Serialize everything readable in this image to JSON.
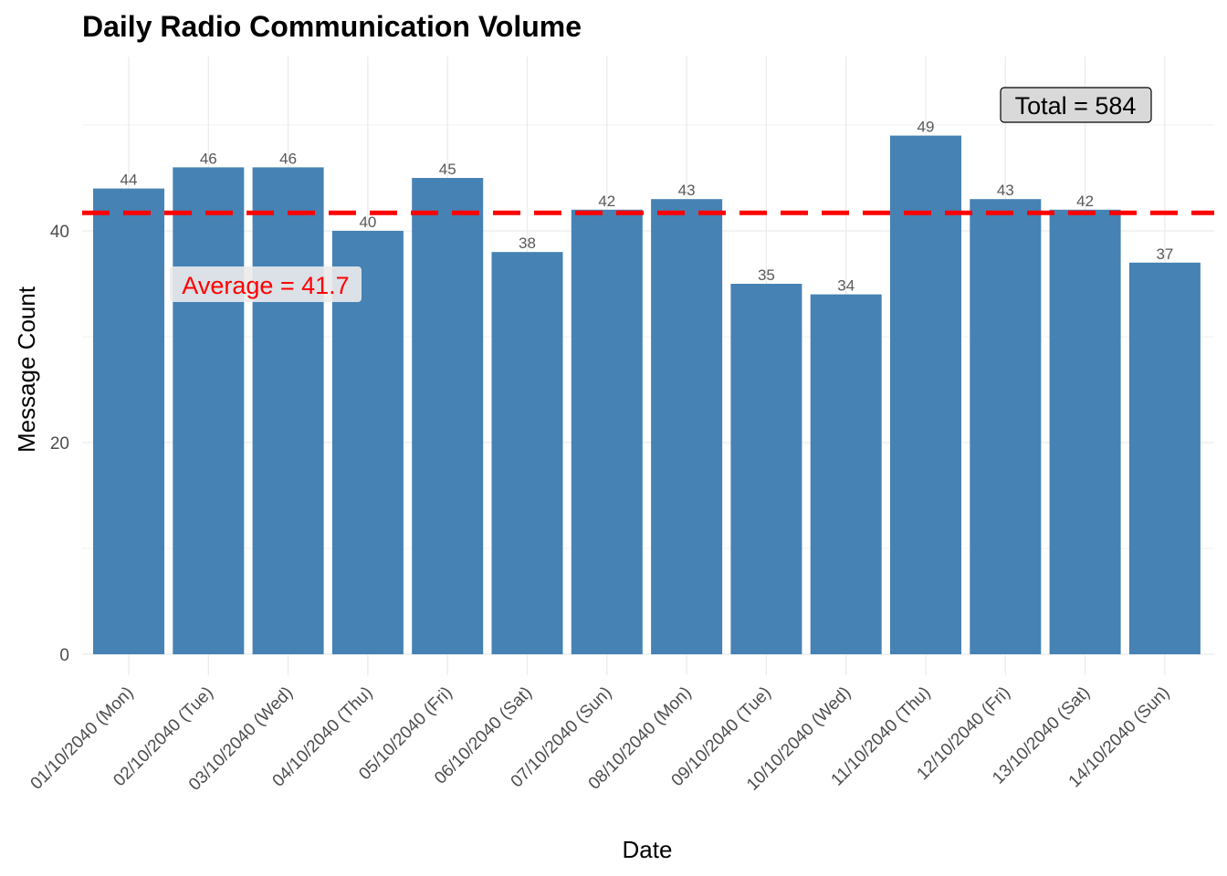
{
  "chart_data": {
    "type": "bar",
    "title": "Daily Radio Communication Volume",
    "xlabel": "Date",
    "ylabel": "Message Count",
    "categories": [
      "01/10/2040 (Mon)",
      "02/10/2040 (Tue)",
      "03/10/2040 (Wed)",
      "04/10/2040 (Thu)",
      "05/10/2040 (Fri)",
      "06/10/2040 (Sat)",
      "07/10/2040 (Sun)",
      "08/10/2040 (Mon)",
      "09/10/2040 (Tue)",
      "10/10/2040 (Wed)",
      "11/10/2040 (Thu)",
      "12/10/2040 (Fri)",
      "13/10/2040 (Sat)",
      "14/10/2040 (Sun)"
    ],
    "values": [
      44,
      46,
      46,
      40,
      45,
      38,
      42,
      43,
      35,
      34,
      49,
      43,
      42,
      37
    ],
    "ylim": [
      0,
      56
    ],
    "yticks": [
      0,
      20,
      40
    ],
    "grid": true,
    "bar_color": "#4682B4",
    "average_line": {
      "value": 41.7,
      "color": "#FF0000",
      "style": "dashed"
    },
    "annotations": {
      "average": "Average = 41.7",
      "total": "Total = 584"
    }
  }
}
